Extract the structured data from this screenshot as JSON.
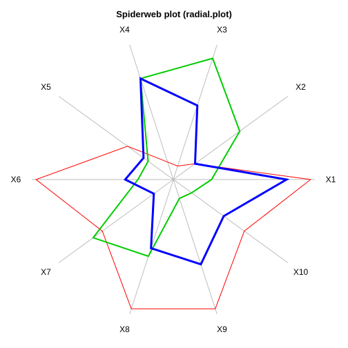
{
  "chart_data": {
    "type": "radar",
    "title": "Spiderweb plot (radial.plot)",
    "axes": [
      "X1",
      "X2",
      "X3",
      "X4",
      "X5",
      "X6",
      "X7",
      "X8",
      "X9",
      "X10"
    ],
    "range": [
      0,
      1
    ],
    "grid": "spokes",
    "series": [
      {
        "color": "#ff0000",
        "line_width": 1,
        "values": [
          0.97,
          0.19,
          0.1,
          0.13,
          0.4,
          0.97,
          0.62,
          0.96,
          0.96,
          0.62
        ]
      },
      {
        "color": "#00cc00",
        "line_width": 2,
        "values": [
          0.27,
          0.58,
          0.9,
          0.75,
          0.22,
          0.25,
          0.7,
          0.57,
          0.14,
          0.16
        ]
      },
      {
        "color": "#0000ff",
        "line_width": 3,
        "values": [
          0.8,
          0.19,
          0.55,
          0.75,
          0.26,
          0.34,
          0.17,
          0.51,
          0.63,
          0.44
        ]
      }
    ]
  }
}
